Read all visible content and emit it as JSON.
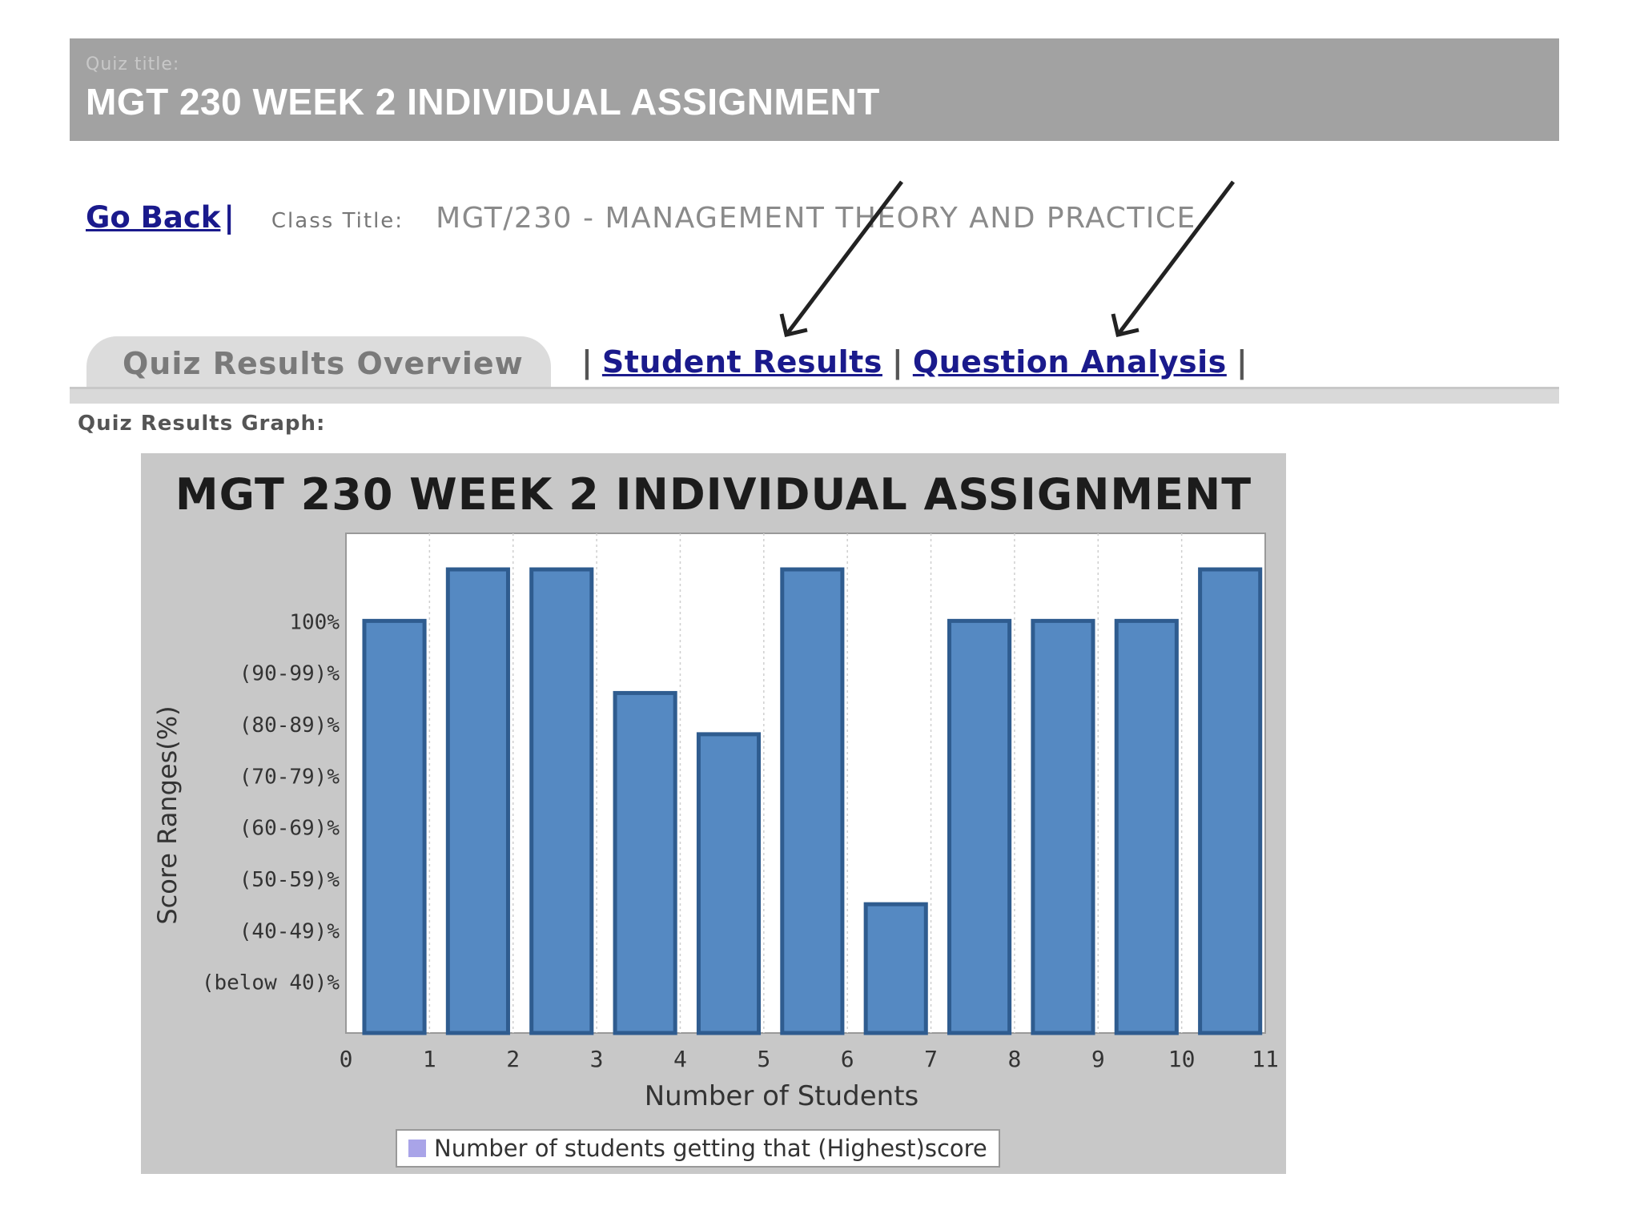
{
  "header": {
    "quiz_label": "Quiz title:",
    "quiz_title": "MGT 230 WEEK 2 INDIVIDUAL ASSIGNMENT"
  },
  "class_row": {
    "go_back": "Go Back",
    "separator": "|",
    "class_label": "Class Title:",
    "class_value": "MGT/230 - MANAGEMENT THEORY AND PRACTICE"
  },
  "tabs": {
    "active": "Quiz Results Overview",
    "pipe": "|",
    "student_results": "Student Results",
    "question_analysis": "Question Analysis"
  },
  "graph_label": "Quiz Results Graph:",
  "colors": {
    "bar_fill": "#5589c2",
    "bar_stroke": "#2f5c8f",
    "legend_swatch": "#a9a4e8"
  },
  "chart_data": {
    "type": "bar",
    "title": "MGT 230 WEEK 2 INDIVIDUAL ASSIGNMENT",
    "xlabel": "Number of Students",
    "ylabel": "Score Ranges(%)",
    "x_ticks": [
      "0",
      "1",
      "2",
      "3",
      "4",
      "5",
      "6",
      "7",
      "8",
      "9",
      "10",
      "11"
    ],
    "y_ticks": [
      "(below 40)%",
      "(40-49)%",
      "(50-59)%",
      "(60-69)%",
      "(70-79)%",
      "(80-89)%",
      "(90-99)%",
      "100%"
    ],
    "series": [
      {
        "name": "Number of students getting that (Highest)score",
        "values": [
          8,
          9,
          9,
          6.6,
          5.8,
          9,
          2.5,
          8,
          8,
          8,
          9
        ]
      }
    ],
    "ylim": [
      0,
      9.7
    ],
    "xlim": [
      0,
      11
    ],
    "grid": "vertical dotted",
    "legend_position": "bottom"
  }
}
